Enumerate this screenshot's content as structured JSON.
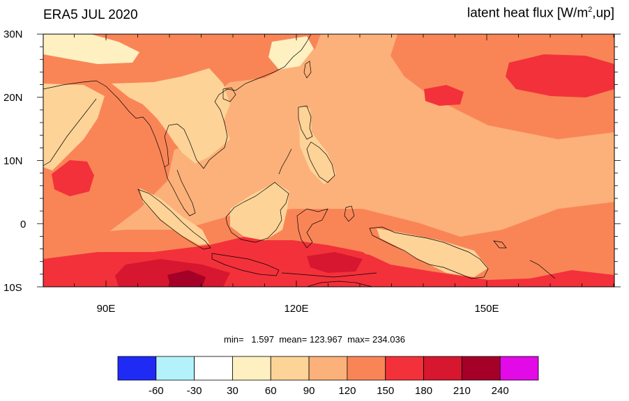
{
  "title": "ERA5 JUL 2020",
  "variable": {
    "prefix": "latent heat flux [W/m",
    "superscript": "2",
    "suffix": ",up]"
  },
  "lat_labels": [
    "30N",
    "20N",
    "10N",
    "0",
    "10S"
  ],
  "lon_labels": [
    "90E",
    "120E",
    "150E"
  ],
  "stats": {
    "min_label": "min=",
    "min": "1.597",
    "mean_label": "mean=",
    "mean": "123.967",
    "max_label": "max=",
    "max": "234.036"
  },
  "colorbar": {
    "colors": [
      "#1f2bf5",
      "#b3f2fb",
      "#ffffff",
      "#fef0c1",
      "#fdd398",
      "#fbb179",
      "#f98557",
      "#f3313a",
      "#d6172f",
      "#a50027",
      "#e20ae6"
    ],
    "labels": [
      "-60",
      "-30",
      "30",
      "60",
      "90",
      "120",
      "150",
      "180",
      "210",
      "240"
    ]
  },
  "colors": {
    "ocean_base": "#fbb179",
    "land": "#fdd398",
    "high": "#f98557",
    "very_high": "#f3313a",
    "extreme": "#d6172f",
    "peak": "#a50027",
    "low": "#fef0c1"
  }
}
